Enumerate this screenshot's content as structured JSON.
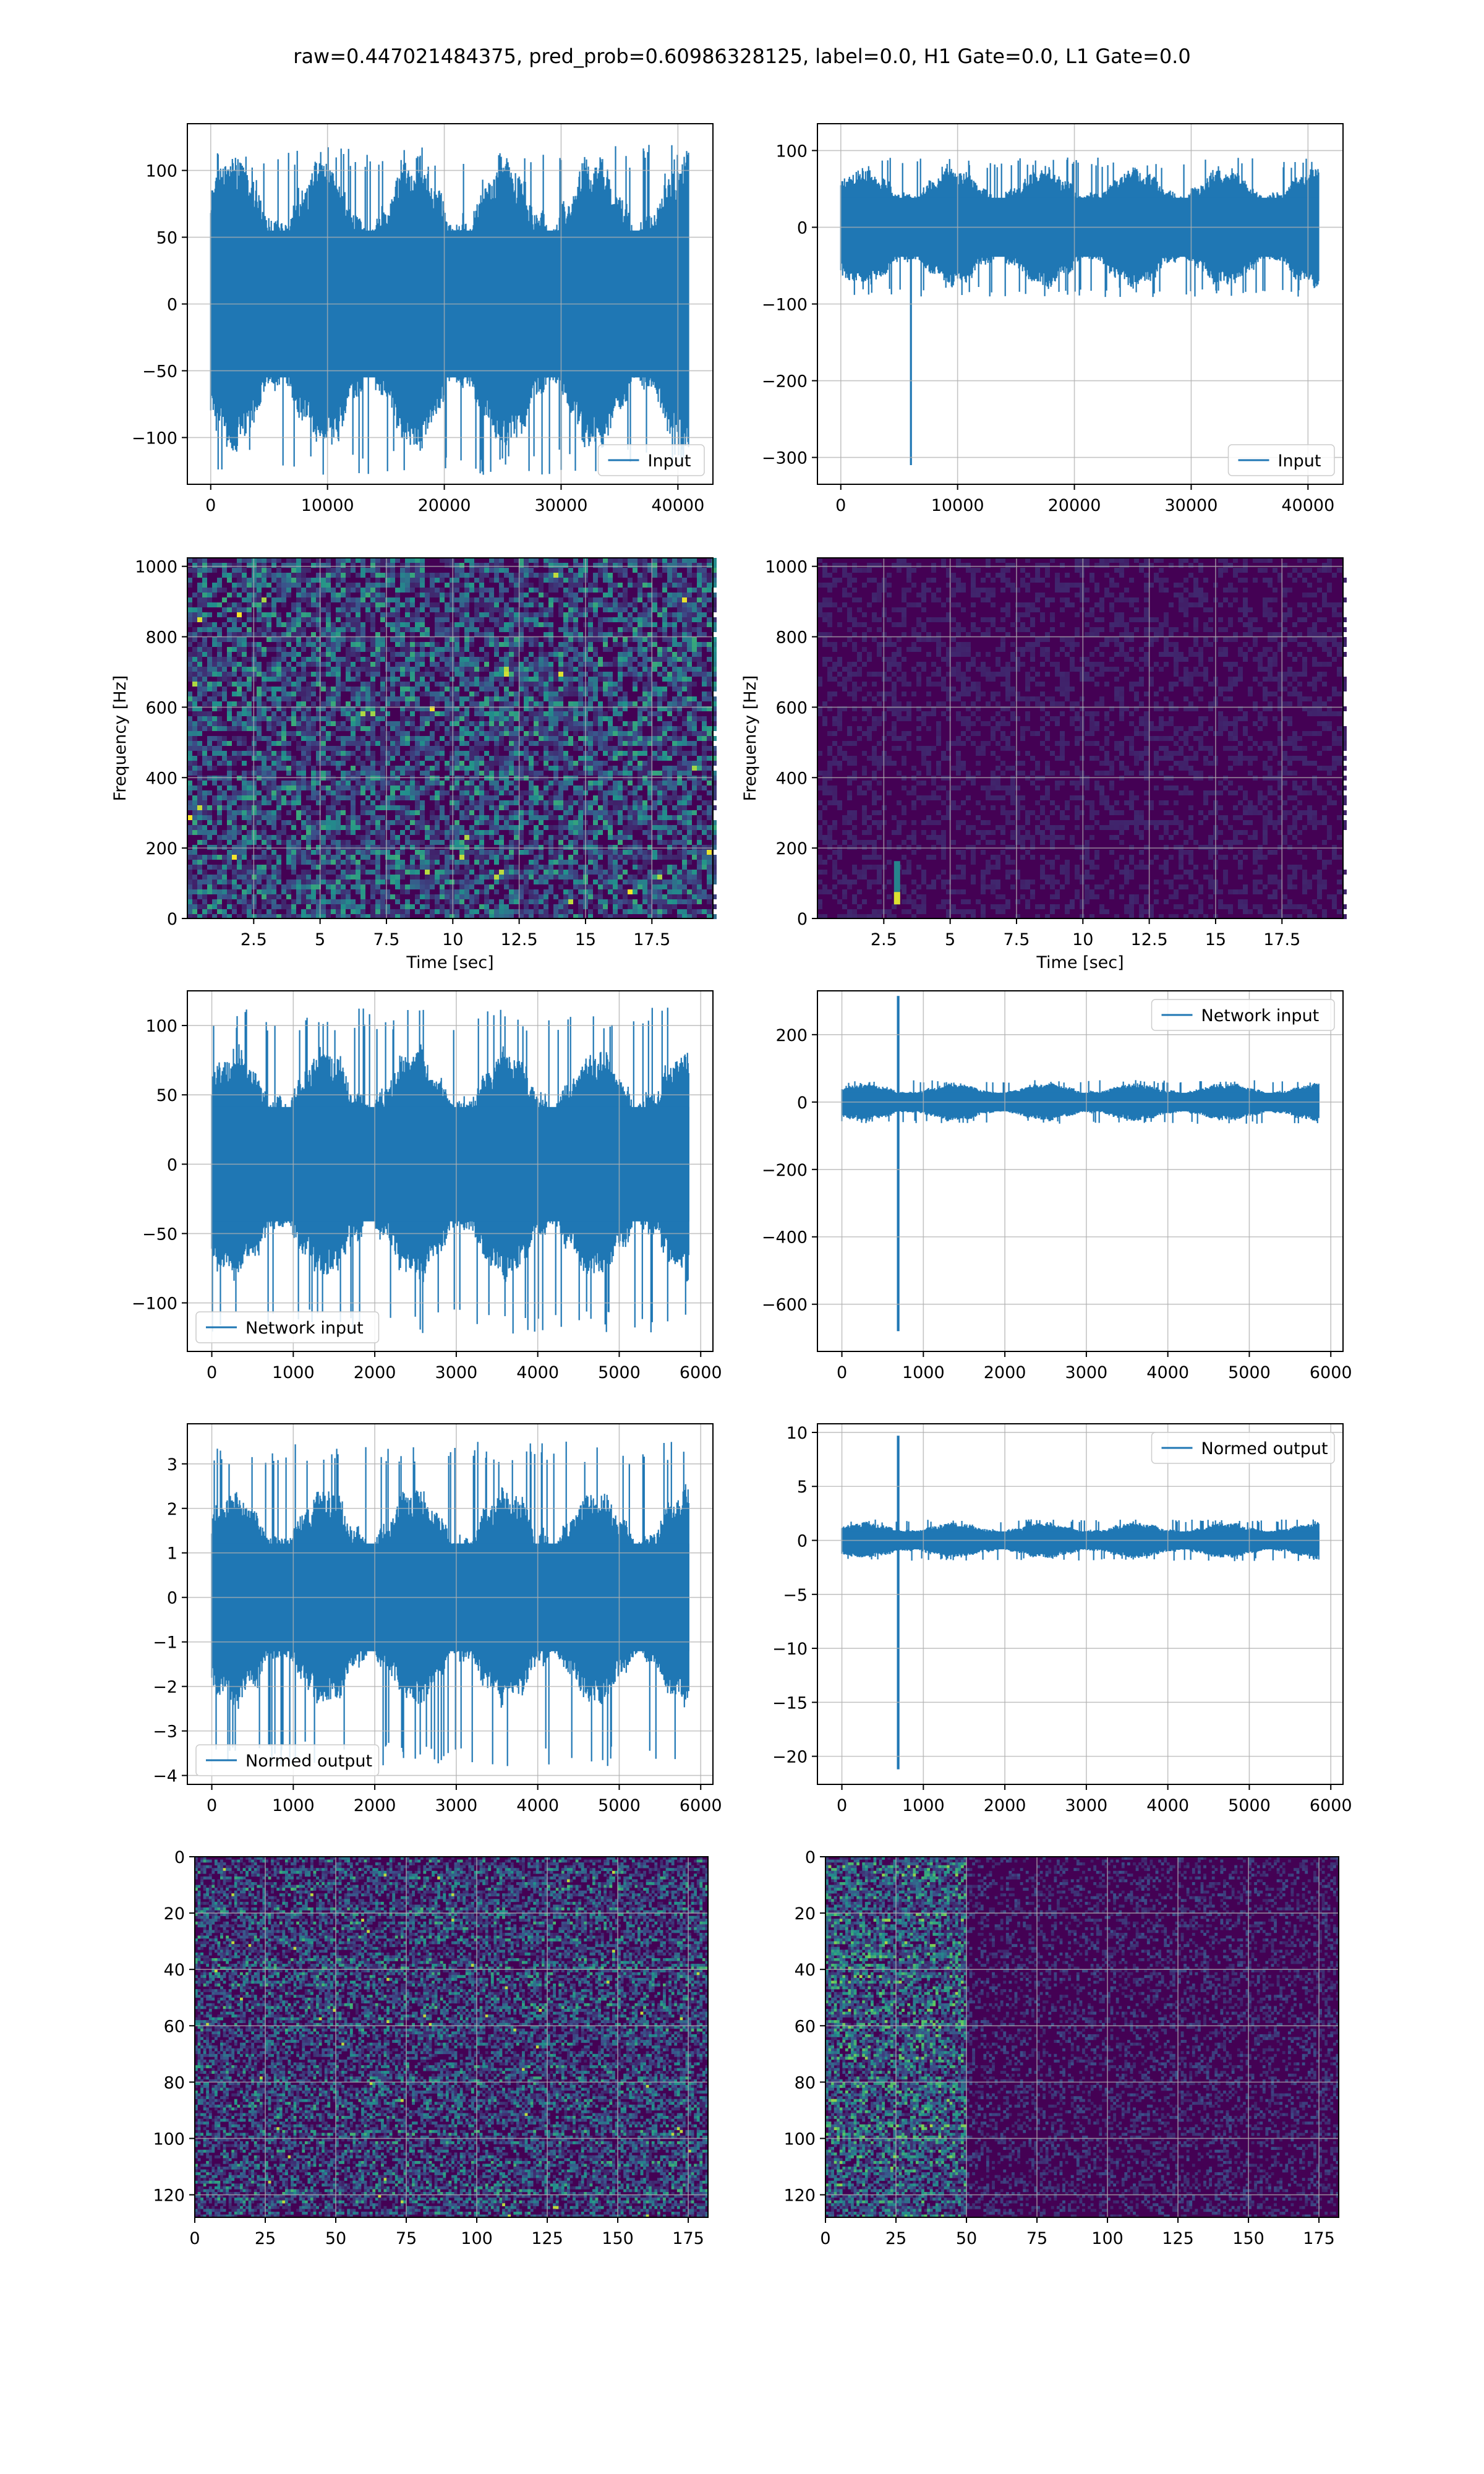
{
  "suptitle": "raw=0.447021484375, pred_prob=0.60986328125, label=0.0, H1 Gate=0.0, L1 Gate=0.0",
  "colors": {
    "line": "#1f77b4",
    "grid": "#b0b0b0",
    "viridis_dark": "#440154",
    "viridis_mid": "#21918c",
    "viridis_bright": "#fde725"
  },
  "chart_data": [
    {
      "id": "r1c1",
      "type": "line",
      "series": [
        {
          "name": "Input",
          "n_points": 40960,
          "amplitude": 100,
          "peak_max": 120,
          "peak_min": -128
        }
      ],
      "xlim": [
        -2000,
        43000
      ],
      "ylim": [
        -135,
        135
      ],
      "xticks": [
        0,
        10000,
        20000,
        30000,
        40000
      ],
      "yticks": [
        -100,
        -50,
        0,
        50,
        100
      ],
      "grid": true,
      "legend": "lower-right"
    },
    {
      "id": "r1c2",
      "type": "line",
      "series": [
        {
          "name": "Input",
          "n_points": 40960,
          "amplitude": 70,
          "spike": {
            "x": 6000,
            "y": -310
          }
        }
      ],
      "xlim": [
        -2000,
        43000
      ],
      "ylim": [
        -335,
        135
      ],
      "xticks": [
        0,
        10000,
        20000,
        30000,
        40000
      ],
      "yticks": [
        -300,
        -200,
        -100,
        0,
        100
      ],
      "grid": true,
      "legend": "lower-right"
    },
    {
      "id": "r2c1",
      "type": "heatmap",
      "xlabel": "Time [sec]",
      "ylabel": "Frequency [Hz]",
      "xlim": [
        0,
        19.8
      ],
      "ylim": [
        0,
        1024
      ],
      "xticks": [
        2.5,
        5.0,
        7.5,
        10.0,
        12.5,
        15.0,
        17.5
      ],
      "yticks": [
        0,
        200,
        400,
        600,
        800,
        1000
      ],
      "grid": true
    },
    {
      "id": "r2c2",
      "type": "heatmap",
      "xlabel": "Time [sec]",
      "ylabel": "Frequency [Hz]",
      "xlim": [
        0,
        19.8
      ],
      "ylim": [
        0,
        1024
      ],
      "xticks": [
        2.5,
        5.0,
        7.5,
        10.0,
        12.5,
        15.0,
        17.5
      ],
      "yticks": [
        0,
        200,
        400,
        600,
        800,
        1000
      ],
      "grid": true,
      "hot_spot": {
        "time": 3.0,
        "freq": 40
      }
    },
    {
      "id": "r3c1",
      "type": "line",
      "series": [
        {
          "name": "Network input",
          "n_points": 5860,
          "amplitude": 75,
          "peak_max": 113,
          "peak_min": -123
        }
      ],
      "xlim": [
        -300,
        6150
      ],
      "ylim": [
        -135,
        125
      ],
      "xticks": [
        0,
        1000,
        2000,
        3000,
        4000,
        5000,
        6000
      ],
      "yticks": [
        -100,
        -50,
        0,
        50,
        100
      ],
      "grid": true,
      "legend": "lower-left"
    },
    {
      "id": "r3c2",
      "type": "line",
      "series": [
        {
          "name": "Network input",
          "n_points": 5860,
          "amplitude": 50,
          "spike": {
            "x": 690,
            "y_max": 315,
            "y_min": -680
          }
        }
      ],
      "xlim": [
        -300,
        6150
      ],
      "ylim": [
        -740,
        330
      ],
      "xticks": [
        0,
        1000,
        2000,
        3000,
        4000,
        5000,
        6000
      ],
      "yticks": [
        -600,
        -400,
        -200,
        0,
        200
      ],
      "grid": true,
      "legend": "upper-right"
    },
    {
      "id": "r4c1",
      "type": "line",
      "series": [
        {
          "name": "Normed output",
          "n_points": 5860,
          "amplitude": 2.2,
          "peak_max": 3.5,
          "peak_min": -3.8
        }
      ],
      "xlim": [
        -300,
        6150
      ],
      "ylim": [
        -4.2,
        3.9
      ],
      "xticks": [
        0,
        1000,
        2000,
        3000,
        4000,
        5000,
        6000
      ],
      "yticks": [
        -4,
        -3,
        -2,
        -1,
        0,
        1,
        2,
        3
      ],
      "grid": true,
      "legend": "lower-left"
    },
    {
      "id": "r4c2",
      "type": "line",
      "series": [
        {
          "name": "Normed output",
          "n_points": 5860,
          "amplitude": 1.5,
          "spike": {
            "x": 690,
            "y_max": 9.7,
            "y_min": -21.2
          }
        }
      ],
      "xlim": [
        -300,
        6150
      ],
      "ylim": [
        -22.6,
        10.8
      ],
      "xticks": [
        0,
        1000,
        2000,
        3000,
        4000,
        5000,
        6000
      ],
      "yticks": [
        -20,
        -15,
        -10,
        -5,
        0,
        5,
        10
      ],
      "grid": true,
      "legend": "upper-right"
    },
    {
      "id": "r5c1",
      "type": "heatmap",
      "xlim": [
        0,
        182
      ],
      "ylim": [
        128,
        0
      ],
      "xticks": [
        0,
        25,
        50,
        75,
        100,
        125,
        150,
        175
      ],
      "yticks": [
        0,
        20,
        40,
        60,
        80,
        100,
        120
      ],
      "grid": true
    },
    {
      "id": "r5c2",
      "type": "heatmap",
      "xlim": [
        0,
        182
      ],
      "ylim": [
        128,
        0
      ],
      "xticks": [
        0,
        25,
        50,
        75,
        100,
        125,
        150,
        175
      ],
      "yticks": [
        0,
        20,
        40,
        60,
        80,
        100,
        120
      ],
      "grid": true,
      "bright_columns": [
        0,
        50
      ]
    }
  ]
}
